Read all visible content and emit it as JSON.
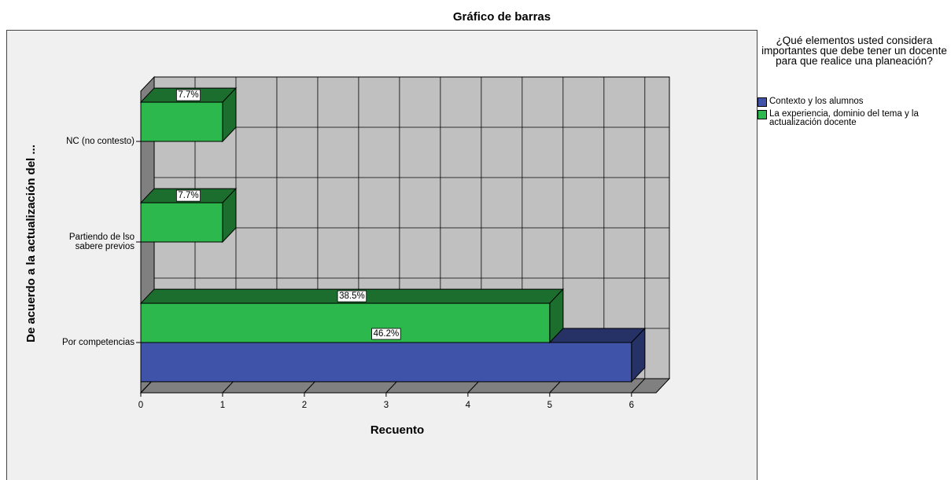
{
  "chart_data": {
    "type": "bar",
    "orientation": "horizontal",
    "title": "Gráfico de barras",
    "x_label": "Recuento",
    "y_label": "De acuerdo a la actualización del ...",
    "legend_title": "¿Qué elementos usted considera importantes que debe tener un docente para que realice una planeación?",
    "categories": [
      "NC (no contesto)",
      "Partiendo de lso\nsabere previos",
      "Por competencias"
    ],
    "series": [
      {
        "name": "Contexto y los alumnos",
        "color": "#3f54a8",
        "values": [
          null,
          null,
          6
        ],
        "percents": [
          null,
          null,
          46.2
        ],
        "percent_labels": [
          null,
          null,
          "46.2%"
        ]
      },
      {
        "name": "La experiencia, dominio del tema y la actualización docente",
        "color": "#2db84d",
        "values": [
          1,
          1,
          5
        ],
        "percents": [
          7.7,
          7.7,
          38.5
        ],
        "percent_labels": [
          "7.7%",
          "7.7%",
          "38.5%"
        ]
      }
    ],
    "xlim": [
      0,
      6.3
    ],
    "xticks": [
      0,
      1,
      2,
      3,
      4,
      5,
      6
    ],
    "grid": true,
    "legend_position": "right"
  }
}
